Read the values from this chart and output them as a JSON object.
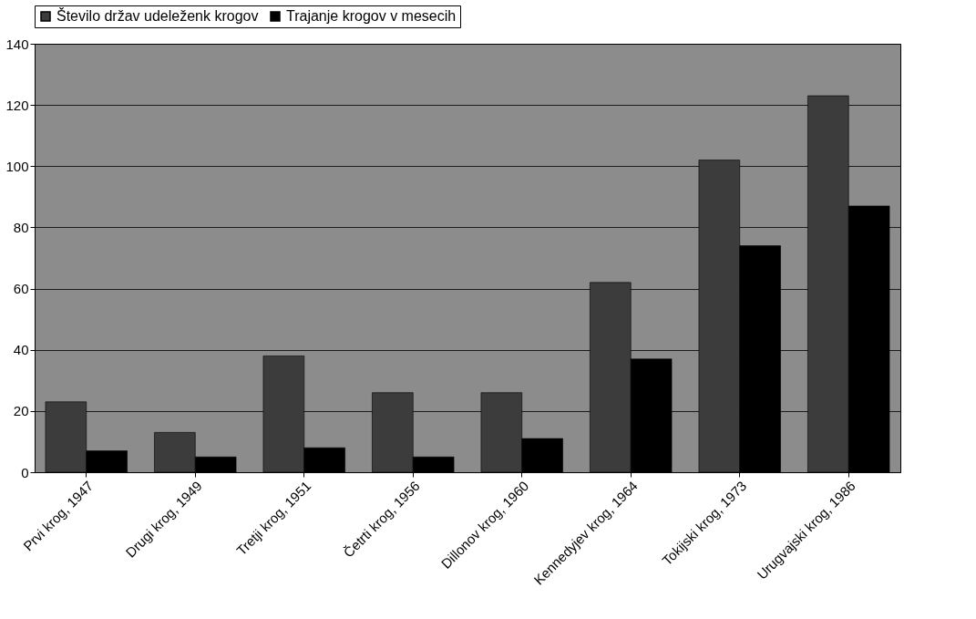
{
  "chart_data": {
    "type": "bar",
    "categories": [
      "Prvi krog, 1947",
      "Drugi krog, 1949",
      "Tretji krog, 1951",
      "Četrti krog, 1956",
      "Dillonov krog, 1960",
      "Kennedyjev krog, 1964",
      "Tokijski krog, 1973",
      "Urugvajski krog, 1986"
    ],
    "series": [
      {
        "name": "Število držav udeleženk krogov",
        "color": "#3c3c3c",
        "values": [
          23,
          13,
          38,
          26,
          26,
          62,
          102,
          123
        ]
      },
      {
        "name": "Trajanje krogov v mesecih",
        "color": "#000000",
        "values": [
          7,
          5,
          8,
          5,
          11,
          37,
          74,
          87
        ]
      }
    ],
    "ylim": [
      0,
      140
    ],
    "yticks": [
      0,
      20,
      40,
      60,
      80,
      100,
      120,
      140
    ],
    "grid": "y",
    "legend": "top"
  }
}
